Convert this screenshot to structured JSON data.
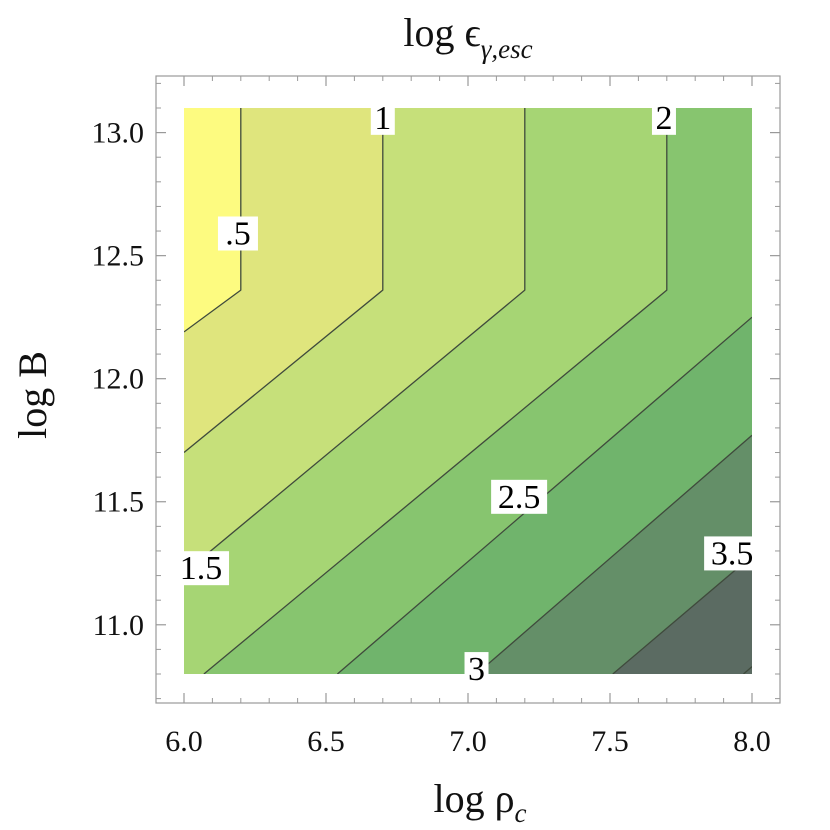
{
  "chart_data": {
    "type": "contour",
    "title": "log ϵγ,esc",
    "title_parts": {
      "base": "log ϵ",
      "subscript": "γ,esc"
    },
    "xlabel": "log ρc",
    "xlabel_parts": {
      "base": "log ρ",
      "subscript": "c"
    },
    "ylabel": "log B",
    "xlim": [
      6.0,
      8.0
    ],
    "ylim": [
      10.8,
      13.1
    ],
    "xticks": [
      "6.0",
      "6.5",
      "7.0",
      "7.5",
      "8.0"
    ],
    "yticks": [
      "11.0",
      "11.5",
      "12.0",
      "12.5",
      "13.0"
    ],
    "grid": false,
    "colormap": [
      "#fdfb80",
      "#dfe57d",
      "#c6e07a",
      "#a6d574",
      "#87c56f",
      "#70b46c",
      "#648f68",
      "#5b6b62"
    ],
    "contours": [
      {
        "level": 0.5,
        "label": ".5",
        "points": [
          [
            6.2,
            13.1
          ],
          [
            6.2,
            12.36
          ],
          [
            6.0,
            12.19
          ]
        ]
      },
      {
        "level": 1,
        "label": "1",
        "points": [
          [
            6.7,
            13.1
          ],
          [
            6.7,
            12.36
          ],
          [
            6.0,
            11.7
          ]
        ]
      },
      {
        "level": 1.5,
        "label": "1.5",
        "points": [
          [
            7.2,
            13.1
          ],
          [
            7.2,
            12.36
          ],
          [
            6.0,
            11.21
          ]
        ]
      },
      {
        "level": 2,
        "label": "2",
        "points": [
          [
            7.7,
            13.1
          ],
          [
            7.7,
            12.36
          ],
          [
            6.07,
            10.8
          ]
        ]
      },
      {
        "level": 2.5,
        "label": "2.5",
        "points": [
          [
            8.0,
            12.25
          ],
          [
            6.54,
            10.8
          ]
        ]
      },
      {
        "level": 3,
        "label": "3",
        "points": [
          [
            8.0,
            11.77
          ],
          [
            7.03,
            10.8
          ]
        ]
      },
      {
        "level": 3.5,
        "label": "3.5",
        "points": [
          [
            8.0,
            11.28
          ],
          [
            7.51,
            10.8
          ]
        ]
      },
      {
        "level": 4,
        "label": "",
        "points": [
          [
            8.0,
            10.83
          ],
          [
            7.97,
            10.8
          ]
        ]
      }
    ],
    "contour_labels": [
      {
        "text": ".5",
        "x": 6.19,
        "y": 12.59
      },
      {
        "text": "1",
        "x": 6.7,
        "y": 13.06
      },
      {
        "text": "1.5",
        "x": 6.06,
        "y": 11.23
      },
      {
        "text": "2",
        "x": 7.69,
        "y": 13.06
      },
      {
        "text": "2.5",
        "x": 7.18,
        "y": 11.52
      },
      {
        "text": "3",
        "x": 7.03,
        "y": 10.82
      },
      {
        "text": "3.5",
        "x": 7.93,
        "y": 11.29
      }
    ]
  }
}
